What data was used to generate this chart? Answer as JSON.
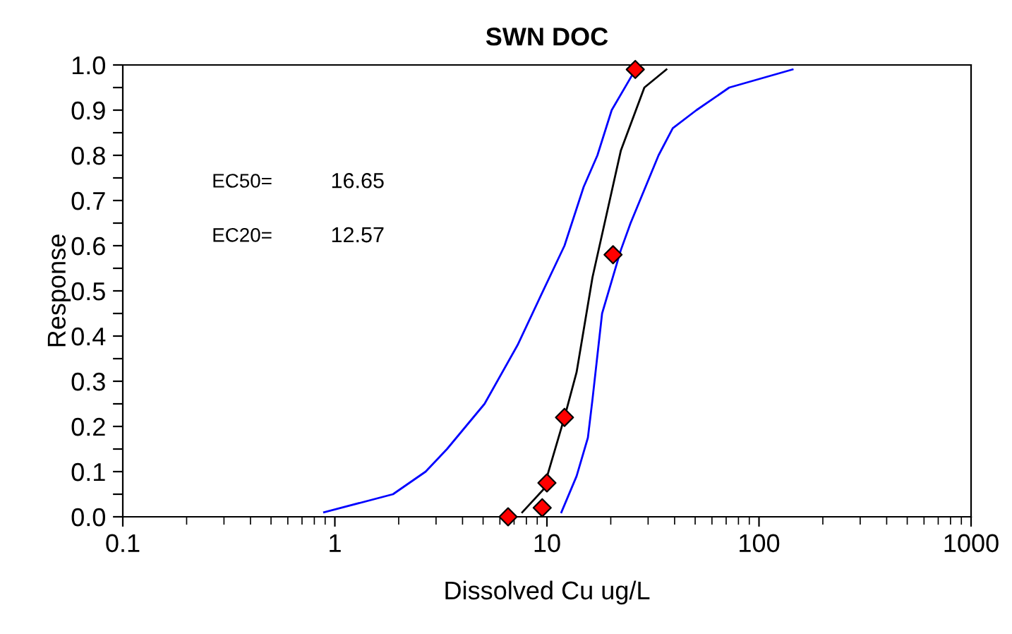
{
  "chart_data": {
    "type": "line",
    "title": "SWN DOC",
    "xlabel": "Dissolved Cu ug/L",
    "ylabel": "Response",
    "log": "x",
    "grid": false,
    "legend": false,
    "xlim": [
      0.1,
      1000
    ],
    "xticks": [
      0.1,
      1,
      10,
      100,
      1000
    ],
    "ylim": [
      0,
      1
    ],
    "yticks": [
      {
        "value": 0,
        "label": "0.0"
      },
      {
        "value": 0.05,
        "label": null
      },
      {
        "value": 0.1,
        "label": "0.1"
      },
      {
        "value": 0.15,
        "label": null
      },
      {
        "value": 0.2,
        "label": "0.2"
      },
      {
        "value": 0.25,
        "label": null
      },
      {
        "value": 0.3,
        "label": "0.3"
      },
      {
        "value": 0.35,
        "label": null
      },
      {
        "value": 0.4,
        "label": "0.4"
      },
      {
        "value": 0.45,
        "label": null
      },
      {
        "value": 0.5,
        "label": "0.5"
      },
      {
        "value": 0.55,
        "label": null
      },
      {
        "value": 0.6,
        "label": "0.6"
      },
      {
        "value": 0.65,
        "label": null
      },
      {
        "value": 0.7,
        "label": "0.7"
      },
      {
        "value": 0.75,
        "label": null
      },
      {
        "value": 0.8,
        "label": "0.8"
      },
      {
        "value": 0.85,
        "label": null
      },
      {
        "value": 0.9,
        "label": "0.9"
      },
      {
        "value": 0.95,
        "label": null
      },
      {
        "value": 1,
        "label": "1.0"
      }
    ],
    "annotations": [
      "EC50=",
      "16.65",
      "EC20=",
      "12.57"
    ],
    "series": [
      {
        "color": "#0000ff",
        "marker": "none",
        "x": [
          0.89,
          1.88,
          2.68,
          3.38,
          5.08,
          7.27,
          9.37,
          12.1,
          14.9,
          17.3,
          20.2,
          25.4
        ],
        "values": [
          0.01,
          0.05,
          0.1,
          0.15,
          0.25,
          0.38,
          0.49,
          0.6,
          0.73,
          0.8,
          0.9,
          0.98
        ]
      },
      {
        "color": "#0000ff",
        "marker": "none",
        "x": [
          11.7,
          13.8,
          15.6,
          16.4,
          18.2,
          22.3,
          24.8,
          33.6,
          39.2,
          50.7,
          72.4,
          144
        ],
        "values": [
          0.01,
          0.09,
          0.175,
          0.26,
          0.45,
          0.59,
          0.65,
          0.8,
          0.86,
          0.9,
          0.95,
          0.99
        ]
      },
      {
        "color": "#000000",
        "marker": "none",
        "x": [
          7.65,
          9.6,
          12.1,
          13.8,
          16.4,
          20.2,
          22.3,
          28.8,
          36.6
        ],
        "values": [
          0.01,
          0.06,
          0.22,
          0.32,
          0.53,
          0.72,
          0.81,
          0.95,
          0.99
        ]
      },
      {
        "type": "scatter",
        "color": "#ff0000",
        "marker": "diamond",
        "x": [
          6.56,
          9.5,
          10.0,
          12.1,
          20.5,
          26.1
        ],
        "values": [
          0.0,
          0.02,
          0.075,
          0.22,
          0.58,
          0.99
        ]
      }
    ]
  }
}
